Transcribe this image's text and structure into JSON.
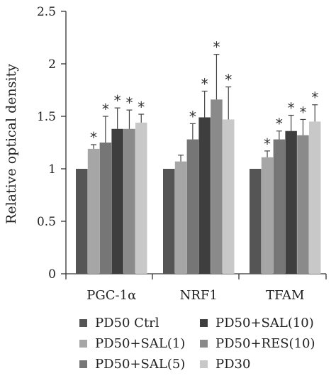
{
  "chart_data": {
    "type": "bar",
    "ylabel": "Relative optical density",
    "xlabel": "",
    "ylim": [
      0,
      2.5
    ],
    "yticks": [
      "0",
      "0.5",
      "1",
      "1.5",
      "2",
      "2.5"
    ],
    "grid": false,
    "legend_position": "bottom",
    "categories": [
      "PGC-1α",
      "NRF1",
      "TFAM"
    ],
    "series": [
      {
        "name": "PD50 Ctrl",
        "color": "#555555",
        "values": [
          1.0,
          1.0,
          1.0
        ],
        "errors": [
          0,
          0,
          0
        ],
        "stars": [
          "",
          "",
          ""
        ]
      },
      {
        "name": "PD50+SAL(1)",
        "color": "#a6a6a6",
        "values": [
          1.19,
          1.07,
          1.11
        ],
        "errors": [
          0.04,
          0.06,
          0.06
        ],
        "stars": [
          "*",
          "",
          "*"
        ]
      },
      {
        "name": "PD50+SAL(5)",
        "color": "#767676",
        "values": [
          1.25,
          1.28,
          1.28
        ],
        "errors": [
          0.25,
          0.15,
          0.08
        ],
        "stars": [
          "*",
          "*",
          "*"
        ]
      },
      {
        "name": "PD50+SAL(10)",
        "color": "#3e3e3e",
        "values": [
          1.38,
          1.49,
          1.36
        ],
        "errors": [
          0.2,
          0.25,
          0.15
        ],
        "stars": [
          "*",
          "*",
          "*"
        ]
      },
      {
        "name": "PD50+RES(10)",
        "color": "#8a8a8a",
        "values": [
          1.38,
          1.66,
          1.32
        ],
        "errors": [
          0.18,
          0.43,
          0.15
        ],
        "stars": [
          "*",
          "*",
          "*"
        ]
      },
      {
        "name": "PD30",
        "color": "#c8c8c8",
        "values": [
          1.44,
          1.47,
          1.45
        ],
        "errors": [
          0.08,
          0.31,
          0.16
        ],
        "stars": [
          "*",
          "*",
          "*"
        ]
      }
    ]
  }
}
